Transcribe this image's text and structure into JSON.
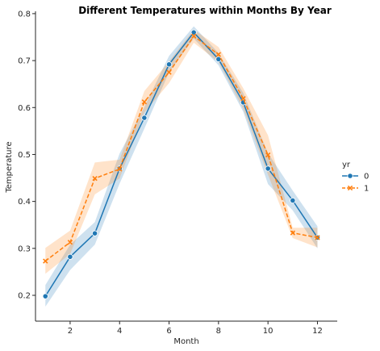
{
  "chart_data": {
    "type": "line",
    "title": "Different Temperatures within Months By Year",
    "xlabel": "Month",
    "ylabel": "Temperature",
    "xlim": [
      0.6,
      12.8
    ],
    "ylim": [
      0.145,
      0.805
    ],
    "xticks": [
      2,
      4,
      6,
      8,
      10,
      12
    ],
    "yticks": [
      0.2,
      0.3,
      0.4,
      0.5,
      0.6,
      0.7,
      0.8
    ],
    "grid": false,
    "legend_title": "yr",
    "legend_position": "right",
    "x": [
      1,
      2,
      3,
      4,
      5,
      6,
      7,
      8,
      9,
      10,
      11,
      12
    ],
    "series": [
      {
        "name": "0",
        "color": "#1f77b4",
        "marker": "circle",
        "linestyle": "solid",
        "values": [
          0.198,
          0.282,
          0.332,
          0.47,
          0.578,
          0.692,
          0.76,
          0.703,
          0.611,
          0.47,
          0.402,
          0.323
        ],
        "ci_low": [
          0.176,
          0.254,
          0.308,
          0.438,
          0.555,
          0.675,
          0.747,
          0.69,
          0.591,
          0.437,
          0.381,
          0.3
        ],
        "ci_high": [
          0.222,
          0.308,
          0.356,
          0.502,
          0.601,
          0.71,
          0.773,
          0.716,
          0.631,
          0.503,
          0.423,
          0.347
        ]
      },
      {
        "name": "1",
        "color": "#ff7f0e",
        "marker": "x",
        "linestyle": "dashed",
        "values": [
          0.273,
          0.313,
          0.449,
          0.469,
          0.612,
          0.675,
          0.752,
          0.713,
          0.619,
          0.499,
          0.333,
          0.323
        ],
        "ci_low": [
          0.246,
          0.288,
          0.415,
          0.449,
          0.589,
          0.652,
          0.738,
          0.697,
          0.597,
          0.457,
          0.322,
          0.302
        ],
        "ci_high": [
          0.301,
          0.338,
          0.483,
          0.489,
          0.635,
          0.698,
          0.766,
          0.729,
          0.641,
          0.541,
          0.344,
          0.344
        ]
      }
    ]
  }
}
